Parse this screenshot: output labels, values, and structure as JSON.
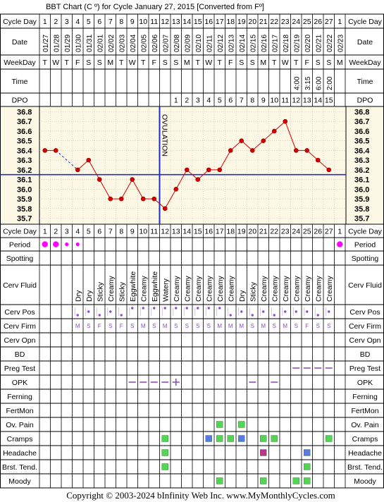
{
  "title": "BBT Chart (C º) for Cycle January 27, 2015  [Converted from Fº]",
  "footer": "Copyright © 2003-2024 bInfinity Web Inc.    www.MyMonthlyCycles.com",
  "row_labels": {
    "cycle_day": "Cycle Day",
    "date": "Date",
    "weekday": "WeekDay",
    "time": "Time",
    "dpo": "DPO",
    "period": "Period",
    "spotting": "Spotting",
    "cerv_fluid": "Cerv Fluid",
    "cerv_pos": "Cerv Pos",
    "cerv_firm": "Cerv Firm",
    "cerv_opn": "Cerv Opn",
    "bd": "BD",
    "preg_test": "Preg Test",
    "opk": "OPK",
    "ferning": "Ferning",
    "fertmon": "FertMon",
    "ov_pain": "Ov. Pain",
    "cramps": "Cramps",
    "headache": "Headache",
    "brst_tend": "Brst. Tend.",
    "moody": "Moody"
  },
  "cycle_days": [
    "1",
    "2",
    "3",
    "4",
    "5",
    "6",
    "7",
    "8",
    "9",
    "10",
    "11",
    "12",
    "13",
    "14",
    "15",
    "16",
    "17",
    "18",
    "19",
    "20",
    "21",
    "22",
    "23",
    "24",
    "25",
    "26",
    "27",
    "1"
  ],
  "dates": [
    "01/27",
    "01/28",
    "01/29",
    "01/30",
    "01/31",
    "02/01",
    "02/02",
    "02/03",
    "02/04",
    "02/05",
    "02/06",
    "02/07",
    "02/08",
    "02/09",
    "02/10",
    "02/11",
    "02/12",
    "02/13",
    "02/14",
    "02/15",
    "02/16",
    "02/17",
    "02/18",
    "02/19",
    "02/20",
    "02/21",
    "02/22",
    "02/23"
  ],
  "weekdays": [
    "T",
    "W",
    "T",
    "F",
    "S",
    "S",
    "M",
    "T",
    "W",
    "T",
    "F",
    "S",
    "S",
    "M",
    "T",
    "W",
    "T",
    "F",
    "S",
    "S",
    "M",
    "T",
    "W",
    "T",
    "F",
    "S",
    "S",
    "M"
  ],
  "times": [
    "",
    "",
    "",
    "",
    "",
    "",
    "",
    "",
    "",
    "",
    "",
    "",
    "",
    "",
    "",
    "",
    "",
    "",
    "",
    "",
    "",
    "",
    "",
    "4:00",
    "3:15",
    "6:00",
    "2:00",
    ""
  ],
  "dpo": [
    "",
    "",
    "",
    "",
    "",
    "",
    "",
    "",
    "",
    "",
    "",
    "",
    "1",
    "2",
    "3",
    "4",
    "5",
    "6",
    "7",
    "8",
    "9",
    "10",
    "11",
    "12",
    "13",
    "14",
    "15",
    ""
  ],
  "cerv_fluid": [
    "",
    "",
    "",
    "Dry",
    "Dry",
    "Sticky",
    "Creamy",
    "Sticky",
    "Eggwhite",
    "Creamy",
    "Eggwhite",
    "Watery",
    "Creamy",
    "Creamy",
    "Creamy",
    "Creamy",
    "Creamy",
    "Creamy",
    "Dry",
    "Sticky",
    "Creamy",
    "Creamy",
    "Creamy",
    "Creamy",
    "Creamy",
    "Creamy",
    "Creamy",
    ""
  ],
  "cerv_pos": [
    "",
    "",
    "",
    "low",
    "med",
    "low",
    "med",
    "low",
    "high",
    "high",
    "high",
    "high",
    "high",
    "high",
    "high",
    "high",
    "high",
    "low",
    "med",
    "low",
    "med",
    "low",
    "med",
    "med",
    "med",
    "low",
    "med",
    ""
  ],
  "cerv_firm": [
    "",
    "",
    "",
    "M",
    "S",
    "F",
    "S",
    "F",
    "S",
    "M",
    "S",
    "M",
    "S",
    "S",
    "S",
    "S",
    "M",
    "M",
    "M",
    "S",
    "M",
    "S",
    "M",
    "S",
    "F",
    "S",
    "S",
    ""
  ],
  "period": [
    "heavy",
    "heavy",
    "light",
    "light",
    "",
    "",
    "",
    "",
    "",
    "",
    "",
    "",
    "",
    "",
    "",
    "",
    "",
    "",
    "",
    "",
    "",
    "",
    "",
    "",
    "",
    "",
    "",
    "heavy"
  ],
  "preg_test": [
    24,
    25,
    26,
    27
  ],
  "opk": [
    {
      "day": 9,
      "result": "negative"
    },
    {
      "day": 10,
      "result": "negative"
    },
    {
      "day": 11,
      "result": "negative"
    },
    {
      "day": 12,
      "result": "negative"
    },
    {
      "day": 13,
      "result": "positive"
    },
    {
      "day": 20,
      "result": "negative"
    },
    {
      "day": 22,
      "result": "negative"
    }
  ],
  "symptoms": {
    "ov_pain": [
      {
        "day": 17,
        "level": "green"
      },
      {
        "day": 19,
        "level": "green"
      }
    ],
    "cramps": [
      {
        "day": 12,
        "level": "green"
      },
      {
        "day": 16,
        "level": "blue"
      },
      {
        "day": 17,
        "level": "green"
      },
      {
        "day": 18,
        "level": "green"
      },
      {
        "day": 19,
        "level": "blue"
      },
      {
        "day": 21,
        "level": "green"
      },
      {
        "day": 22,
        "level": "green"
      },
      {
        "day": 27,
        "level": "green"
      }
    ],
    "headache": [
      {
        "day": 12,
        "level": "green"
      },
      {
        "day": 21,
        "level": "magenta"
      },
      {
        "day": 25,
        "level": "blue"
      }
    ],
    "brst_tend": [
      {
        "day": 12,
        "level": "green"
      },
      {
        "day": 25,
        "level": "green"
      }
    ],
    "moody": [
      {
        "day": 17,
        "level": "green"
      },
      {
        "day": 21,
        "level": "green"
      },
      {
        "day": 24,
        "level": "green"
      },
      {
        "day": 25,
        "level": "green"
      }
    ]
  },
  "colors": {
    "temp_line": "#d40000",
    "coverline": "#1c2ec8",
    "ovulation_line": "#1c2ec8",
    "period": "#ff00ff",
    "green": "#54d454",
    "blue": "#5a7ae0",
    "magenta": "#c0308e",
    "opk": "#8a4ec8",
    "cerv_pos": "#8a4ec8",
    "preg_test": "#8a4ec8"
  },
  "chart_data": {
    "type": "line",
    "title": "BBT Chart (C º) for Cycle January 27, 2015  [Converted from Fº]",
    "xlabel": "Cycle Day",
    "ylabel": "",
    "ylim": [
      35.7,
      36.8
    ],
    "y_ticks": [
      "36.8",
      "36.7",
      "36.6",
      "36.5",
      "36.4",
      "36.3",
      "36.2",
      "36.1",
      "36.0",
      "35.9",
      "35.8",
      "35.7"
    ],
    "x": [
      1,
      2,
      3,
      4,
      5,
      6,
      7,
      8,
      9,
      10,
      11,
      12,
      13,
      14,
      15,
      16,
      17,
      18,
      19,
      20,
      21,
      22,
      23,
      24,
      25,
      26,
      27
    ],
    "temps": [
      36.4,
      36.4,
      null,
      36.2,
      36.3,
      36.1,
      35.9,
      35.9,
      36.1,
      35.9,
      35.9,
      35.8,
      36.0,
      36.2,
      36.1,
      36.2,
      36.2,
      36.4,
      36.5,
      36.4,
      36.5,
      36.6,
      36.7,
      36.4,
      36.4,
      36.3,
      36.2
    ],
    "coverline": 36.15,
    "ovulation_day": 12,
    "ovulation_label": "OVULATION"
  }
}
